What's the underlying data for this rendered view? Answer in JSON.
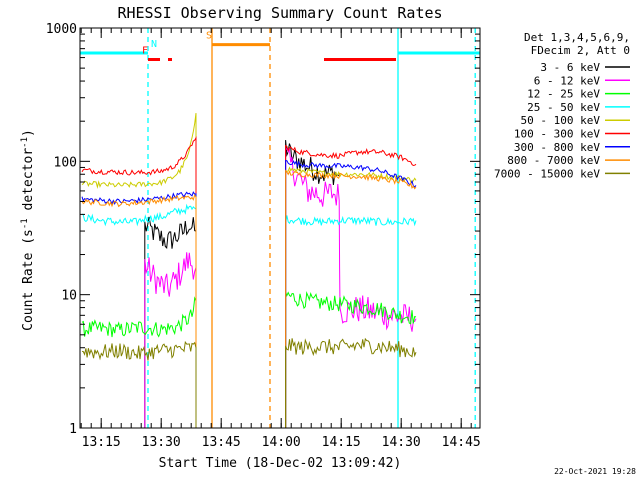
{
  "chart_data": {
    "type": "line",
    "title": "RHESSI Observing Summary Count Rates",
    "xlabel": "Start Time (18-Dec-02 13:09:42)",
    "ylabel_main": "Count Rate (s",
    "ylabel_sup1": "-1",
    "ylabel_mid": " detector",
    "ylabel_sup2": "-1",
    "ylabel_end": ")",
    "y_scale": "log",
    "ylim": [
      1,
      1000
    ],
    "xlim_minutes": [
      0,
      100
    ],
    "x_ticks": [
      {
        "t": 5.3,
        "label": "13:15"
      },
      {
        "t": 20.3,
        "label": "13:30"
      },
      {
        "t": 35.3,
        "label": "13:45"
      },
      {
        "t": 50.3,
        "label": "14:00"
      },
      {
        "t": 65.3,
        "label": "14:15"
      },
      {
        "t": 80.3,
        "label": "14:30"
      },
      {
        "t": 95.3,
        "label": "14:45"
      }
    ],
    "y_ticks": [
      {
        "v": 1,
        "label": "1"
      },
      {
        "v": 10,
        "label": "10"
      },
      {
        "v": 100,
        "label": "100"
      },
      {
        "v": 1000,
        "label": "1000"
      }
    ],
    "legend_header": [
      "Det 1,3,4,5,6,9,",
      "FDecim 2, Att 0"
    ],
    "series": [
      {
        "name": "3 - 6 keV",
        "color": "#000000",
        "pre": [
          [
            16,
            null
          ],
          [
            16.2,
            33
          ],
          [
            18,
            30
          ],
          [
            20,
            27
          ],
          [
            22,
            25
          ],
          [
            24,
            27
          ],
          [
            26,
            30
          ],
          [
            27,
            34
          ],
          [
            28,
            32
          ],
          [
            29,
            30
          ]
        ],
        "post": [
          [
            51,
            null
          ],
          [
            51.4,
            130
          ],
          [
            53,
            108
          ],
          [
            55,
            100
          ],
          [
            57,
            92
          ],
          [
            59,
            85
          ],
          [
            61,
            80
          ],
          [
            63,
            82
          ],
          [
            64.8,
            78
          ]
        ]
      },
      {
        "name": "6 - 12 keV",
        "color": "#ff00ff",
        "pre": [
          [
            16,
            null
          ],
          [
            16.2,
            17
          ],
          [
            18,
            14
          ],
          [
            20,
            12
          ],
          [
            22,
            11
          ],
          [
            24,
            13
          ],
          [
            26,
            16
          ],
          [
            27,
            18
          ],
          [
            28,
            17
          ],
          [
            29,
            16
          ]
        ],
        "post": [
          [
            51,
            null
          ],
          [
            51.4,
            110
          ],
          [
            53,
            90
          ],
          [
            55,
            72
          ],
          [
            57,
            60
          ],
          [
            59,
            58
          ],
          [
            61,
            55
          ],
          [
            63,
            58
          ],
          [
            64.8,
            55
          ],
          [
            65,
            7.5
          ],
          [
            70,
            7.8
          ],
          [
            75,
            7.2
          ],
          [
            80,
            6.8
          ],
          [
            84,
            6.6
          ]
        ]
      },
      {
        "name": "12 - 25 keV",
        "color": "#00ff00",
        "pre": [
          [
            0.5,
            5.5
          ],
          [
            5,
            5.6
          ],
          [
            10,
            5.4
          ],
          [
            15,
            5.7
          ],
          [
            20,
            5.5
          ],
          [
            24,
            5.7
          ],
          [
            26,
            6.2
          ],
          [
            28,
            7
          ],
          [
            29,
            9
          ]
        ],
        "post": [
          [
            51,
            null
          ],
          [
            51.4,
            10
          ],
          [
            55,
            9.2
          ],
          [
            60,
            8.7
          ],
          [
            65,
            8.5
          ],
          [
            70,
            8.2
          ],
          [
            75,
            7.8
          ],
          [
            80,
            7.0
          ],
          [
            84,
            6.8
          ]
        ]
      },
      {
        "name": "25 - 50 keV",
        "color": "#00ffff",
        "pre": [
          [
            0.5,
            38
          ],
          [
            5,
            36
          ],
          [
            10,
            35
          ],
          [
            14,
            35
          ],
          [
            16,
            37
          ],
          [
            20,
            38
          ],
          [
            24,
            42
          ],
          [
            27,
            44
          ],
          [
            29,
            44
          ]
        ],
        "post": [
          [
            51,
            null
          ],
          [
            51.4,
            37
          ],
          [
            55,
            36
          ],
          [
            60,
            35
          ],
          [
            65,
            36
          ],
          [
            70,
            36
          ],
          [
            75,
            35
          ],
          [
            80,
            35
          ],
          [
            84,
            36
          ]
        ]
      },
      {
        "name": "50 - 100 keV",
        "color": "#cccc00",
        "pre": [
          [
            0.5,
            68
          ],
          [
            5,
            67
          ],
          [
            10,
            66
          ],
          [
            15,
            67
          ],
          [
            20,
            69
          ],
          [
            23,
            75
          ],
          [
            25,
            85
          ],
          [
            27,
            110
          ],
          [
            28,
            145
          ],
          [
            29,
            230
          ]
        ],
        "post": [
          [
            51,
            null
          ],
          [
            51.4,
            88
          ],
          [
            55,
            85
          ],
          [
            60,
            82
          ],
          [
            65,
            80
          ],
          [
            70,
            80
          ],
          [
            75,
            78
          ],
          [
            80,
            75
          ],
          [
            84,
            72
          ]
        ]
      },
      {
        "name": "100 - 300 keV",
        "color": "#ff0000",
        "pre": [
          [
            0.5,
            86
          ],
          [
            5,
            84
          ],
          [
            10,
            83
          ],
          [
            15,
            82
          ],
          [
            20,
            84
          ],
          [
            23,
            90
          ],
          [
            25,
            100
          ],
          [
            27,
            118
          ],
          [
            28,
            135
          ],
          [
            29,
            150
          ]
        ],
        "post": [
          [
            51,
            null
          ],
          [
            51.4,
            128
          ],
          [
            55,
            118
          ],
          [
            60,
            112
          ],
          [
            65,
            110
          ],
          [
            70,
            118
          ],
          [
            75,
            117
          ],
          [
            80,
            108
          ],
          [
            84,
            95
          ]
        ]
      },
      {
        "name": "300 - 800 keV",
        "color": "#0000ff",
        "pre": [
          [
            0.5,
            52
          ],
          [
            5,
            51
          ],
          [
            10,
            50
          ],
          [
            15,
            51
          ],
          [
            20,
            53
          ],
          [
            25,
            56
          ],
          [
            29,
            57
          ]
        ],
        "post": [
          [
            51,
            null
          ],
          [
            51.4,
            100
          ],
          [
            55,
            95
          ],
          [
            60,
            93
          ],
          [
            65,
            92
          ],
          [
            70,
            90
          ],
          [
            75,
            85
          ],
          [
            80,
            75
          ],
          [
            84,
            66
          ]
        ]
      },
      {
        "name": "800 - 7000 keV",
        "color": "#ff8c00",
        "pre": [
          [
            0.5,
            50
          ],
          [
            5,
            49
          ],
          [
            10,
            48
          ],
          [
            15,
            49
          ],
          [
            20,
            51
          ],
          [
            25,
            53
          ],
          [
            29,
            54
          ]
        ],
        "post": [
          [
            51,
            null
          ],
          [
            51.4,
            82
          ],
          [
            55,
            80
          ],
          [
            60,
            79
          ],
          [
            65,
            78
          ],
          [
            70,
            77
          ],
          [
            75,
            74
          ],
          [
            80,
            70
          ],
          [
            84,
            64
          ]
        ]
      },
      {
        "name": "7000 - 15000 keV",
        "color": "#808000",
        "pre": [
          [
            0.5,
            3.8
          ],
          [
            5,
            3.7
          ],
          [
            10,
            3.8
          ],
          [
            15,
            3.6
          ],
          [
            20,
            3.8
          ],
          [
            25,
            3.9
          ],
          [
            29,
            4.0
          ]
        ],
        "post": [
          [
            51,
            null
          ],
          [
            51.4,
            4.2
          ],
          [
            55,
            4.0
          ],
          [
            60,
            4.1
          ],
          [
            65,
            4.0
          ],
          [
            70,
            4.2
          ],
          [
            75,
            4.1
          ],
          [
            80,
            3.9
          ],
          [
            84,
            3.7
          ]
        ]
      }
    ],
    "event_bars": [
      {
        "label": "N",
        "color": "#00ffff",
        "start": 0,
        "end": 17,
        "level": 650,
        "style": "solid"
      },
      {
        "label": "",
        "color": "#00ffff",
        "start": 79.5,
        "end": 100,
        "level": 650,
        "style": "solid"
      },
      {
        "label": "F",
        "color": "#ff0000",
        "start": 17,
        "end": 23,
        "level": 580,
        "style": "dashed"
      },
      {
        "label": "",
        "color": "#ff0000",
        "start": 61,
        "end": 79,
        "level": 580,
        "style": "solid"
      },
      {
        "label": "S",
        "color": "#ff8c00",
        "start": 33,
        "end": 47.5,
        "level": 750,
        "style": "solid"
      }
    ],
    "vlines": [
      {
        "color": "#00ffff",
        "t": 17.0,
        "style": "dashed"
      },
      {
        "color": "#00ffff",
        "t": 79.5,
        "style": "solid"
      },
      {
        "color": "#00ffff",
        "t": 98.8,
        "style": "dashed"
      },
      {
        "color": "#ff8c00",
        "t": 33.0,
        "style": "solid"
      },
      {
        "color": "#ff8c00",
        "t": 47.5,
        "style": "dashed"
      }
    ],
    "footer_date": "22-Oct-2021 19:28"
  }
}
